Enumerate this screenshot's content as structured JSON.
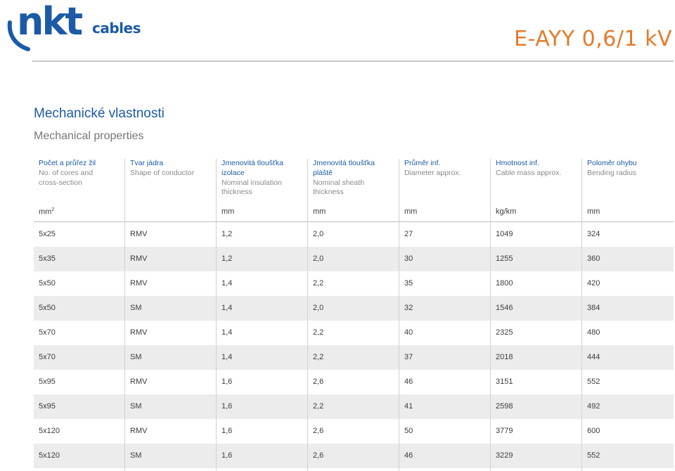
{
  "brand": {
    "logo_main": "nkt",
    "logo_sub": "cables"
  },
  "product_title": "E-AYY 0,6/1 kV",
  "section": {
    "title_cz": "Mechanické vlastnosti",
    "title_en": "Mechanical properties"
  },
  "columns": [
    {
      "cz": [
        "Počet a průřez žil"
      ],
      "en": [
        "No. of cores and",
        "cross-section"
      ],
      "unit": "mm²"
    },
    {
      "cz": [
        "Tvar jádra"
      ],
      "en": [
        "Shape of conductor"
      ],
      "unit": ""
    },
    {
      "cz": [
        "Jmenovitá tloušťka",
        "izolace"
      ],
      "en": [
        "Nominal insulation",
        "thickness"
      ],
      "unit": "mm"
    },
    {
      "cz": [
        "Jmenovitá tloušťka",
        "pláště"
      ],
      "en": [
        "Nominal sheath",
        "thickness"
      ],
      "unit": "mm"
    },
    {
      "cz": [
        "Průměr inf."
      ],
      "en": [
        "Diameter approx."
      ],
      "unit": "mm"
    },
    {
      "cz": [
        "Hmotnost inf."
      ],
      "en": [
        "Cable mass approx."
      ],
      "unit": "kg/km"
    },
    {
      "cz": [
        "Poloměr ohybu"
      ],
      "en": [
        "Bending radius"
      ],
      "unit": "mm"
    }
  ],
  "rows": [
    [
      "5x25",
      "RMV",
      "1,2",
      "2,0",
      "27",
      "1049",
      "324"
    ],
    [
      "5x35",
      "RMV",
      "1,2",
      "2,0",
      "30",
      "1255",
      "360"
    ],
    [
      "5x50",
      "RMV",
      "1,4",
      "2,2",
      "35",
      "1800",
      "420"
    ],
    [
      "5x50",
      "SM",
      "1,4",
      "2,0",
      "32",
      "1546",
      "384"
    ],
    [
      "5x70",
      "RMV",
      "1,4",
      "2,2",
      "40",
      "2325",
      "480"
    ],
    [
      "5x70",
      "SM",
      "1,4",
      "2,2",
      "37",
      "2018",
      "444"
    ],
    [
      "5x95",
      "RMV",
      "1,6",
      "2,6",
      "46",
      "3151",
      "552"
    ],
    [
      "5x95",
      "SM",
      "1,6",
      "2,2",
      "41",
      "2598",
      "492"
    ],
    [
      "5x120",
      "RMV",
      "1,6",
      "2,6",
      "50",
      "3779",
      "600"
    ],
    [
      "5x120",
      "SM",
      "1,6",
      "2,6",
      "46",
      "3229",
      "552"
    ]
  ],
  "colors": {
    "brand_blue": "#1c5aa6",
    "title_orange": "#e37b2a",
    "row_alt": "#ececec"
  }
}
